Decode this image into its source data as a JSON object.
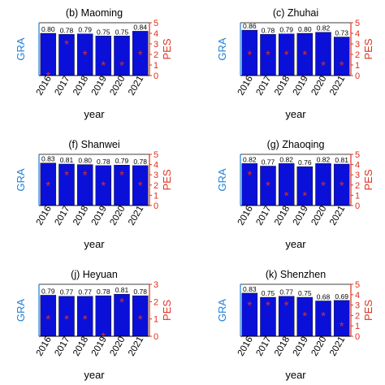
{
  "colors": {
    "bar": "#0a10d8",
    "bar_edge": "#000000",
    "gra": "#1f7fd6",
    "pes": "#e0301e",
    "axis": "#000000"
  },
  "labels": {
    "left_axis_full": "GRA",
    "left_axis_cut": "GRA",
    "right_axis": "PES",
    "x_axis": "year"
  },
  "chart_data": [
    {
      "type": "bar",
      "title": "(b) Maoming",
      "categories": [
        "2016",
        "2017",
        "2018",
        "2019",
        "2020",
        "2021"
      ],
      "left_label": "GRA",
      "right_label": "PES",
      "xlabel": "year",
      "gra": [
        0.8,
        0.78,
        0.79,
        0.75,
        0.75,
        0.84
      ],
      "gra_labels": [
        "0.80",
        "0.78",
        "0.79",
        "0.75",
        "0.75",
        "0.84"
      ],
      "pes": [
        0,
        3,
        2,
        1,
        1,
        2
      ],
      "pes_ylim": [
        0,
        5
      ],
      "pes_ticks": [
        "0",
        "1",
        "2",
        "3",
        "4",
        "5"
      ]
    },
    {
      "type": "bar",
      "title": "(c) Zhuhai",
      "categories": [
        "2016",
        "2017",
        "2018",
        "2019",
        "2020",
        "2021"
      ],
      "left_label": "GRA",
      "right_label": "PES",
      "xlabel": "year",
      "gra": [
        0.86,
        0.78,
        0.79,
        0.8,
        0.82,
        0.73
      ],
      "gra_labels": [
        "0.86",
        "0.78",
        "0.79",
        "0.80",
        "0.82",
        "0.73"
      ],
      "pes": [
        2,
        2,
        2,
        2,
        1,
        1
      ],
      "pes_ylim": [
        0,
        5
      ],
      "pes_ticks": [
        "0",
        "1",
        "2",
        "3",
        "4",
        "5"
      ]
    },
    {
      "type": "bar",
      "title": "(f) Shanwei",
      "categories": [
        "2016",
        "2017",
        "2018",
        "2019",
        "2020",
        "2021"
      ],
      "left_label": "GRA",
      "right_label": "PES",
      "xlabel": "year",
      "gra": [
        0.83,
        0.81,
        0.8,
        0.78,
        0.79,
        0.78
      ],
      "gra_labels": [
        "0.83",
        "0.81",
        "0.80",
        "0.78",
        "0.79",
        "0.78"
      ],
      "pes": [
        2,
        3,
        3,
        2,
        3,
        2
      ],
      "pes_ylim": [
        0,
        5
      ],
      "pes_ticks": [
        "0",
        "1",
        "2",
        "3",
        "4",
        "5"
      ]
    },
    {
      "type": "bar",
      "title": "(g) Zhaoqing",
      "categories": [
        "2016",
        "2017",
        "2018",
        "2019",
        "2020",
        "2021"
      ],
      "left_label": "GRA",
      "right_label": "PES",
      "xlabel": "year",
      "gra": [
        0.82,
        0.77,
        0.82,
        0.76,
        0.82,
        0.81
      ],
      "gra_labels": [
        "0.82",
        "0.77",
        "0.82",
        "0.76",
        "0.82",
        "0.81"
      ],
      "pes": [
        3,
        2,
        1,
        1,
        2,
        2
      ],
      "pes_ylim": [
        0,
        5
      ],
      "pes_ticks": [
        "0",
        "1",
        "2",
        "3",
        "4",
        "5"
      ]
    },
    {
      "type": "bar",
      "title": "(j) Heyuan",
      "categories": [
        "2016",
        "2017",
        "2018",
        "2019",
        "2020",
        "2021"
      ],
      "left_label": "GRA",
      "right_label": "PES",
      "xlabel": "year",
      "gra": [
        0.79,
        0.77,
        0.77,
        0.78,
        0.81,
        0.78
      ],
      "gra_labels": [
        "0.79",
        "0.77",
        "0.77",
        "0.78",
        "0.81",
        "0.78"
      ],
      "pes": [
        1,
        1,
        1,
        0,
        2,
        1
      ],
      "pes_ylim": [
        0,
        3
      ],
      "pes_ticks": [
        "0",
        "1",
        "2",
        "3"
      ]
    },
    {
      "type": "bar",
      "title": "(k) Shenzhen",
      "categories": [
        "2016",
        "2017",
        "2018",
        "2019",
        "2020",
        "2021"
      ],
      "left_label": "GRA",
      "right_label": "PES",
      "xlabel": "year",
      "gra": [
        0.83,
        0.75,
        0.77,
        0.75,
        0.68,
        0.69
      ],
      "gra_labels": [
        "0.83",
        "0.75",
        "0.77",
        "0.75",
        "0.68",
        "0.69"
      ],
      "pes": [
        3,
        3,
        3,
        2,
        2,
        1
      ],
      "pes_ylim": [
        0,
        5
      ],
      "pes_ticks": [
        "0",
        "1",
        "2",
        "3",
        "4",
        "5"
      ]
    }
  ]
}
